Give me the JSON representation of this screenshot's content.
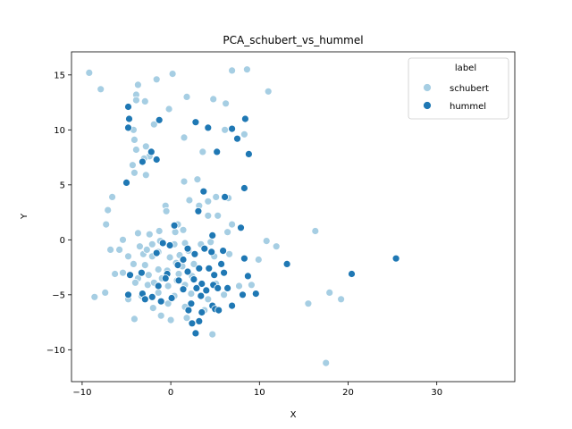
{
  "chart_data": {
    "type": "scatter",
    "title": "PCA_schubert_vs_hummel",
    "xlabel": "X",
    "ylabel": "Y",
    "xlim": [
      -11.2,
      38.8
    ],
    "ylim": [
      -12.9,
      17.1
    ],
    "xticks": [
      -10,
      0,
      10,
      20,
      30
    ],
    "yticks": [
      -10,
      -5,
      0,
      5,
      10,
      15
    ],
    "grid": false,
    "legend": {
      "title": "label",
      "position": "top-right"
    },
    "series": [
      {
        "name": "schubert",
        "color": "#a6cee3",
        "points": [
          [
            -9.2,
            15.2
          ],
          [
            -7.9,
            13.7
          ],
          [
            -1.6,
            14.6
          ],
          [
            0.2,
            15.1
          ],
          [
            6.9,
            15.4
          ],
          [
            8.6,
            15.5
          ],
          [
            -3.7,
            14.1
          ],
          [
            -3.9,
            13.2
          ],
          [
            -2.9,
            12.6
          ],
          [
            -3.9,
            12.7
          ],
          [
            1.8,
            13.0
          ],
          [
            4.8,
            12.8
          ],
          [
            6.2,
            12.4
          ],
          [
            11.0,
            13.5
          ],
          [
            -0.2,
            11.9
          ],
          [
            -4.2,
            10.0
          ],
          [
            -1.9,
            10.5
          ],
          [
            -4.1,
            9.1
          ],
          [
            1.5,
            9.3
          ],
          [
            8.3,
            9.6
          ],
          [
            6.1,
            10.0
          ],
          [
            -2.8,
            8.5
          ],
          [
            -3.9,
            8.2
          ],
          [
            -2.4,
            7.6
          ],
          [
            3.6,
            8.0
          ],
          [
            -3.0,
            7.4
          ],
          [
            -4.3,
            6.8
          ],
          [
            -4.1,
            6.1
          ],
          [
            -2.8,
            5.9
          ],
          [
            1.5,
            5.3
          ],
          [
            3.0,
            5.5
          ],
          [
            -6.6,
            3.9
          ],
          [
            -7.1,
            2.7
          ],
          [
            -0.6,
            3.1
          ],
          [
            2.1,
            3.6
          ],
          [
            4.2,
            3.5
          ],
          [
            5.1,
            3.9
          ],
          [
            6.5,
            3.8
          ],
          [
            -0.5,
            2.6
          ],
          [
            3.2,
            3.1
          ],
          [
            4.2,
            2.2
          ],
          [
            5.3,
            2.2
          ],
          [
            -7.3,
            1.4
          ],
          [
            0.8,
            1.4
          ],
          [
            6.9,
            1.4
          ],
          [
            -3.7,
            0.6
          ],
          [
            -2.4,
            0.5
          ],
          [
            -1.3,
            0.8
          ],
          [
            0.5,
            0.7
          ],
          [
            1.4,
            0.9
          ],
          [
            6.4,
            0.7
          ],
          [
            -5.4,
            0.0
          ],
          [
            -3.5,
            -0.6
          ],
          [
            -2.1,
            -0.4
          ],
          [
            -1.2,
            -0.1
          ],
          [
            0.4,
            -0.4
          ],
          [
            1.6,
            -0.3
          ],
          [
            4.5,
            -0.2
          ],
          [
            10.8,
            -0.1
          ],
          [
            11.9,
            -0.6
          ],
          [
            16.3,
            0.8
          ],
          [
            -6.8,
            -0.9
          ],
          [
            -5.8,
            -0.9
          ],
          [
            -3.1,
            -1.3
          ],
          [
            -2.1,
            -1.5
          ],
          [
            -0.1,
            -1.6
          ],
          [
            1.0,
            -1.4
          ],
          [
            4.9,
            -1.5
          ],
          [
            6.6,
            -1.3
          ],
          [
            9.9,
            -1.8
          ],
          [
            -4.8,
            -1.5
          ],
          [
            -4.2,
            -2.2
          ],
          [
            -2.9,
            -2.3
          ],
          [
            -1.4,
            -2.7
          ],
          [
            -0.4,
            -2.8
          ],
          [
            1.3,
            -2.4
          ],
          [
            2.6,
            -2.2
          ],
          [
            -5.4,
            -3.0
          ],
          [
            -3.7,
            -3.5
          ],
          [
            -2.5,
            -3.2
          ],
          [
            -1.0,
            -3.5
          ],
          [
            0.7,
            -3.7
          ],
          [
            2.4,
            -3.3
          ],
          [
            -6.3,
            -3.1
          ],
          [
            -4.0,
            -3.9
          ],
          [
            -2.6,
            -4.1
          ],
          [
            -0.3,
            -4.2
          ],
          [
            1.6,
            -4.1
          ],
          [
            5.1,
            -4.0
          ],
          [
            7.7,
            -4.2
          ],
          [
            9.1,
            -4.1
          ],
          [
            -8.6,
            -5.2
          ],
          [
            -7.4,
            -4.8
          ],
          [
            -4.8,
            -5.4
          ],
          [
            -3.3,
            -5.1
          ],
          [
            -1.4,
            -4.8
          ],
          [
            0.4,
            -5.1
          ],
          [
            2.3,
            -4.9
          ],
          [
            4.2,
            -5.4
          ],
          [
            6.0,
            -5.0
          ],
          [
            -2.0,
            -6.2
          ],
          [
            -0.3,
            -5.8
          ],
          [
            1.6,
            -6.1
          ],
          [
            3.8,
            -6.4
          ],
          [
            15.5,
            -5.8
          ],
          [
            17.9,
            -4.8
          ],
          [
            19.2,
            -5.4
          ],
          [
            -4.1,
            -7.2
          ],
          [
            -1.1,
            -6.9
          ],
          [
            0.0,
            -7.3
          ],
          [
            1.8,
            -7.1
          ],
          [
            4.7,
            -8.6
          ],
          [
            17.5,
            -11.2
          ],
          [
            -1.4,
            -1.1
          ],
          [
            0.6,
            -2.1
          ],
          [
            2.0,
            -1.0
          ],
          [
            3.4,
            -0.4
          ],
          [
            -2.7,
            -0.9
          ],
          [
            -1.9,
            -3.9
          ],
          [
            0.9,
            -3.1
          ]
        ]
      },
      {
        "name": "hummel",
        "color": "#1f78b4",
        "points": [
          [
            -4.8,
            12.1
          ],
          [
            -4.7,
            11.0
          ],
          [
            -4.8,
            10.2
          ],
          [
            -1.3,
            10.9
          ],
          [
            2.8,
            10.7
          ],
          [
            4.2,
            10.2
          ],
          [
            6.9,
            10.1
          ],
          [
            8.4,
            11.0
          ],
          [
            7.5,
            9.2
          ],
          [
            8.8,
            7.8
          ],
          [
            -2.2,
            8.0
          ],
          [
            -1.6,
            7.3
          ],
          [
            -3.2,
            7.1
          ],
          [
            5.2,
            8.0
          ],
          [
            -5.0,
            5.2
          ],
          [
            3.7,
            4.4
          ],
          [
            8.3,
            4.7
          ],
          [
            6.1,
            3.9
          ],
          [
            3.1,
            2.6
          ],
          [
            0.4,
            1.3
          ],
          [
            7.9,
            1.1
          ],
          [
            4.7,
            0.4
          ],
          [
            -0.9,
            -0.3
          ],
          [
            -0.1,
            -0.5
          ],
          [
            1.9,
            -0.8
          ],
          [
            3.8,
            -0.8
          ],
          [
            4.6,
            -1.1
          ],
          [
            2.7,
            -1.3
          ],
          [
            5.9,
            -1.0
          ],
          [
            -1.6,
            -1.2
          ],
          [
            8.3,
            -1.7
          ],
          [
            13.1,
            -2.2
          ],
          [
            25.4,
            -1.7
          ],
          [
            0.8,
            -2.3
          ],
          [
            3.2,
            -2.6
          ],
          [
            4.3,
            -2.6
          ],
          [
            5.7,
            -2.2
          ],
          [
            1.9,
            -2.9
          ],
          [
            4.9,
            -3.2
          ],
          [
            6.0,
            -3.0
          ],
          [
            8.7,
            -3.3
          ],
          [
            20.4,
            -3.1
          ],
          [
            -4.6,
            -3.2
          ],
          [
            -3.3,
            -3.0
          ],
          [
            -0.4,
            -3.1
          ],
          [
            0.9,
            -3.7
          ],
          [
            2.6,
            -3.6
          ],
          [
            3.5,
            -4.0
          ],
          [
            4.8,
            -4.1
          ],
          [
            6.4,
            -4.4
          ],
          [
            -3.2,
            -4.9
          ],
          [
            -1.4,
            -4.2
          ],
          [
            1.4,
            -4.5
          ],
          [
            2.9,
            -4.4
          ],
          [
            4.0,
            -4.6
          ],
          [
            5.3,
            -4.4
          ],
          [
            -4.8,
            -5.0
          ],
          [
            -2.1,
            -5.2
          ],
          [
            0.1,
            -5.3
          ],
          [
            3.4,
            -5.1
          ],
          [
            8.1,
            -5.0
          ],
          [
            9.6,
            -4.9
          ],
          [
            -2.9,
            -5.4
          ],
          [
            -1.1,
            -5.6
          ],
          [
            2.3,
            -5.8
          ],
          [
            4.7,
            -6.0
          ],
          [
            6.9,
            -6.0
          ],
          [
            2.0,
            -6.4
          ],
          [
            3.5,
            -6.6
          ],
          [
            5.0,
            -6.3
          ],
          [
            5.4,
            -6.4
          ],
          [
            2.4,
            -7.6
          ],
          [
            3.2,
            -7.4
          ],
          [
            2.8,
            -8.5
          ],
          [
            1.4,
            -1.8
          ],
          [
            -0.6,
            -3.5
          ]
        ]
      }
    ]
  }
}
